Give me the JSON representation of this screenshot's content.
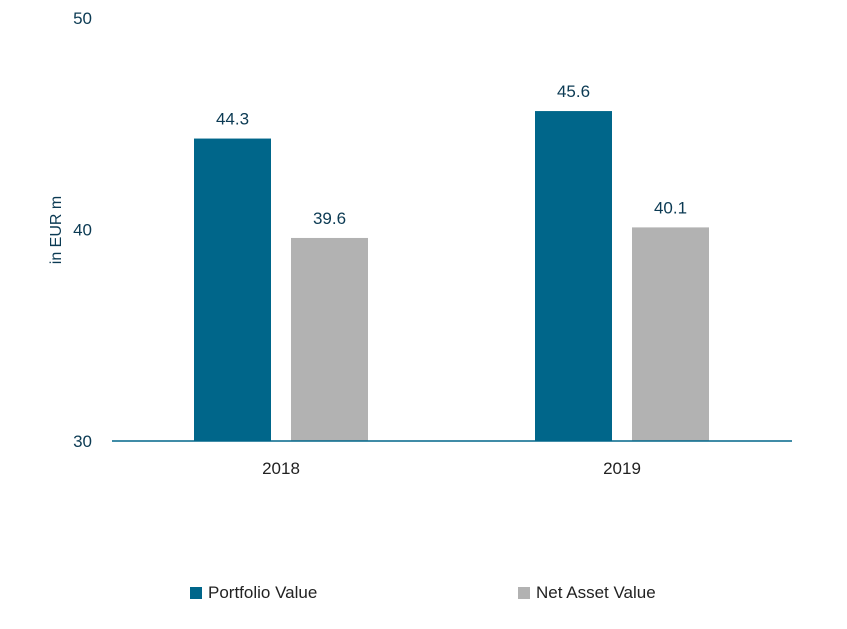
{
  "chart_data": {
    "type": "bar",
    "title": "",
    "xlabel": "",
    "ylabel": "in EUR m",
    "ylim": [
      30,
      50
    ],
    "yticks": [
      30,
      40,
      50
    ],
    "categories": [
      "2018",
      "2019"
    ],
    "series": [
      {
        "name": "Portfolio Value",
        "values": [
          44.3,
          45.6
        ],
        "color": "#00668a"
      },
      {
        "name": "Net Asset Value",
        "values": [
          39.6,
          40.1
        ],
        "color": "#b2b2b2"
      }
    ],
    "grid": false,
    "legend_position": "bottom"
  }
}
